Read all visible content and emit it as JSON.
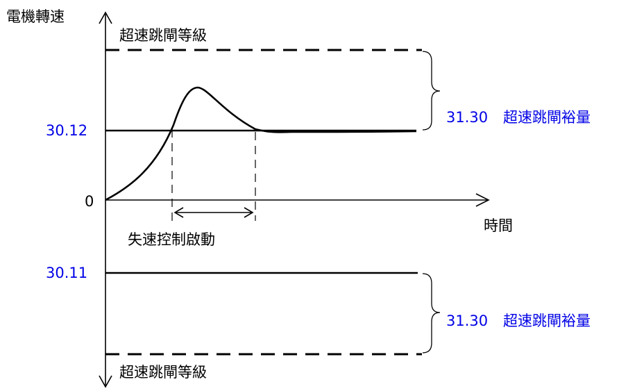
{
  "labels": {
    "y_axis": "電機轉速",
    "x_axis": "時間",
    "overspeed_trip_level": "超速跳閘等級",
    "max_speed_param": "30.12",
    "min_speed_param": "30.11",
    "zero": "0",
    "margin_param": "31.30",
    "margin_text": "超速跳閘裕量",
    "stall_control": "失速控制啟動"
  },
  "colors": {
    "param_blue": "#0000e6",
    "line": "#000000"
  }
}
